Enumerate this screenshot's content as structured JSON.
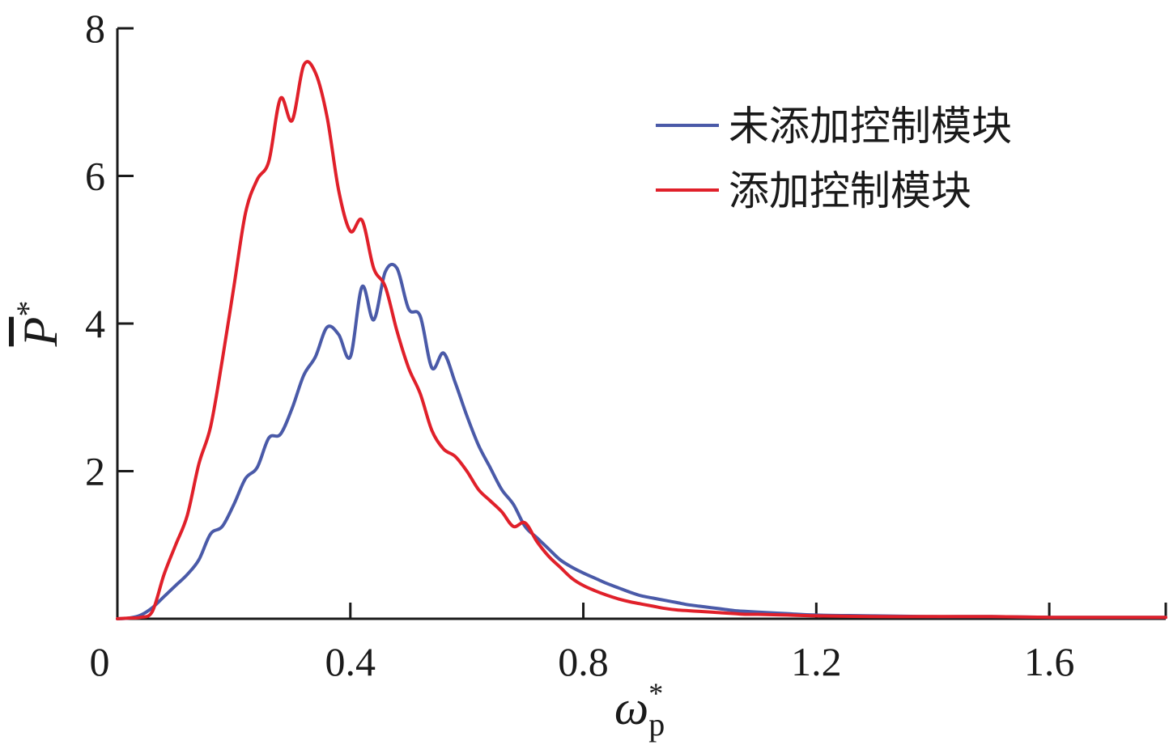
{
  "chart_data": {
    "type": "line",
    "xlabel": "ω*p",
    "xlabel_parts": {
      "symbol": "ω",
      "sub": "p",
      "sup": "*"
    },
    "ylabel": "P̄*",
    "ylabel_parts": {
      "symbol": "P",
      "sup": "*",
      "overbar": true
    },
    "xlim": [
      0,
      1.8
    ],
    "ylim": [
      0,
      8
    ],
    "xticks": [
      0,
      0.4,
      0.8,
      1.2,
      1.6
    ],
    "xtick_labels": [
      "0",
      "0.4",
      "0.8",
      "1.2",
      "1.6"
    ],
    "yticks": [
      2,
      4,
      6,
      8
    ],
    "ytick_labels": [
      "2",
      "4",
      "6",
      "8"
    ],
    "grid": false,
    "legend_position": "top-right",
    "series": [
      {
        "name": "未添加控制模块",
        "color": "#4a5aa8",
        "x": [
          0,
          0.02,
          0.04,
          0.06,
          0.08,
          0.1,
          0.12,
          0.14,
          0.16,
          0.18,
          0.2,
          0.22,
          0.24,
          0.26,
          0.28,
          0.3,
          0.32,
          0.34,
          0.36,
          0.38,
          0.4,
          0.42,
          0.44,
          0.46,
          0.48,
          0.5,
          0.52,
          0.54,
          0.56,
          0.58,
          0.6,
          0.62,
          0.64,
          0.66,
          0.68,
          0.7,
          0.72,
          0.74,
          0.76,
          0.78,
          0.8,
          0.82,
          0.84,
          0.86,
          0.88,
          0.9,
          0.92,
          0.94,
          0.96,
          0.98,
          1.0,
          1.02,
          1.04,
          1.06,
          1.08,
          1.1,
          1.15,
          1.2,
          1.3,
          1.4,
          1.5,
          1.6,
          1.7,
          1.8
        ],
        "y": [
          0,
          0.01,
          0.05,
          0.15,
          0.3,
          0.45,
          0.6,
          0.8,
          1.15,
          1.25,
          1.55,
          1.9,
          2.05,
          2.45,
          2.5,
          2.85,
          3.3,
          3.55,
          3.95,
          3.85,
          3.55,
          4.5,
          4.05,
          4.7,
          4.75,
          4.2,
          4.1,
          3.4,
          3.6,
          3.2,
          2.75,
          2.35,
          2.05,
          1.75,
          1.55,
          1.25,
          1.1,
          0.95,
          0.8,
          0.7,
          0.62,
          0.55,
          0.48,
          0.42,
          0.36,
          0.31,
          0.28,
          0.25,
          0.22,
          0.19,
          0.17,
          0.15,
          0.13,
          0.11,
          0.1,
          0.09,
          0.07,
          0.05,
          0.04,
          0.03,
          0.03,
          0.02,
          0.02,
          0.02
        ]
      },
      {
        "name": "添加控制模块",
        "color": "#e0202a",
        "x": [
          0,
          0.02,
          0.04,
          0.06,
          0.08,
          0.1,
          0.12,
          0.14,
          0.16,
          0.18,
          0.2,
          0.22,
          0.24,
          0.26,
          0.28,
          0.3,
          0.32,
          0.34,
          0.36,
          0.38,
          0.4,
          0.42,
          0.44,
          0.46,
          0.48,
          0.5,
          0.52,
          0.54,
          0.56,
          0.58,
          0.6,
          0.62,
          0.64,
          0.66,
          0.68,
          0.7,
          0.72,
          0.74,
          0.76,
          0.78,
          0.8,
          0.82,
          0.84,
          0.86,
          0.88,
          0.9,
          0.92,
          0.94,
          0.96,
          0.98,
          1.0,
          1.02,
          1.04,
          1.06,
          1.08,
          1.1,
          1.15,
          1.2,
          1.3,
          1.4,
          1.5,
          1.6,
          1.7,
          1.8
        ],
        "y": [
          0,
          0.01,
          0.02,
          0.1,
          0.6,
          1.0,
          1.4,
          2.1,
          2.6,
          3.5,
          4.5,
          5.5,
          5.95,
          6.2,
          7.05,
          6.75,
          7.5,
          7.4,
          6.8,
          5.8,
          5.25,
          5.4,
          4.75,
          4.5,
          3.9,
          3.4,
          3.05,
          2.55,
          2.3,
          2.2,
          2.0,
          1.75,
          1.6,
          1.45,
          1.25,
          1.3,
          1.05,
          0.85,
          0.7,
          0.55,
          0.45,
          0.38,
          0.32,
          0.27,
          0.23,
          0.2,
          0.17,
          0.14,
          0.12,
          0.11,
          0.1,
          0.09,
          0.08,
          0.07,
          0.06,
          0.06,
          0.05,
          0.04,
          0.03,
          0.03,
          0.03,
          0.02,
          0.02,
          0.02
        ]
      }
    ]
  }
}
